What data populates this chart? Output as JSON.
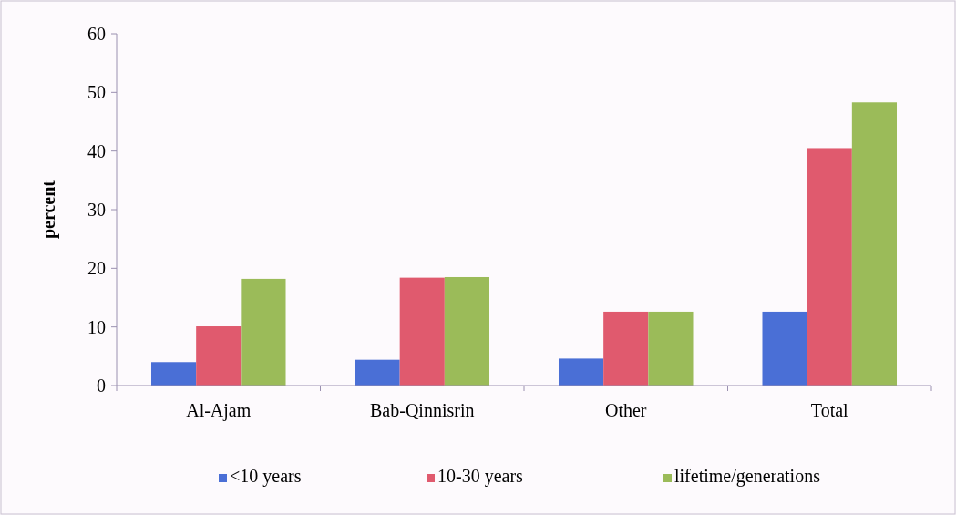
{
  "chart_data": {
    "type": "bar",
    "ylabel": "percent",
    "categories": [
      "Al-Ajam",
      "Bab-Qinnisrin",
      "Other",
      "Total"
    ],
    "series": [
      {
        "name": "<10 years",
        "color": "#4a6fd6",
        "values": [
          4.0,
          4.4,
          4.6,
          12.6
        ]
      },
      {
        "name": "10-30 years",
        "color": "#e05a6e",
        "values": [
          10.1,
          18.4,
          12.6,
          40.5
        ]
      },
      {
        "name": "lifetime/generations",
        "color": "#9bbb59",
        "values": [
          18.2,
          18.5,
          12.6,
          48.3
        ]
      }
    ],
    "ylim": [
      0,
      60
    ],
    "yticks": [
      0,
      10,
      20,
      30,
      40,
      50,
      60
    ],
    "grid": false,
    "legend": "bottom"
  }
}
